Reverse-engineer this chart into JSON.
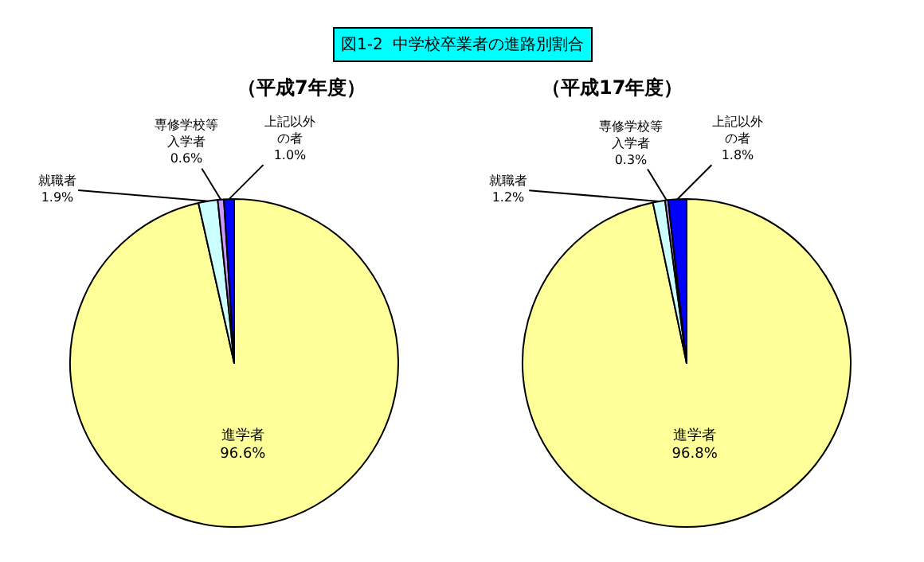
{
  "chart_data": [
    {
      "type": "pie",
      "title": "（平成7年度）",
      "annotations": [
        "図1-2  中学校卒業者の進路別割合"
      ],
      "categories": [
        "進学者",
        "就職者",
        "専修学校等入学者",
        "上記以外の者"
      ],
      "values": [
        96.6,
        1.9,
        0.6,
        1.0
      ],
      "value_labels": [
        "96.6%",
        "1.9%",
        "0.6%",
        "1.0%"
      ],
      "colors": [
        "#ffff99",
        "#ccffff",
        "#cc99ff",
        "#0000ff"
      ],
      "legend": false
    },
    {
      "type": "pie",
      "title": "（平成17年度）",
      "categories": [
        "進学者",
        "就職者",
        "専修学校等入学者",
        "上記以外の者"
      ],
      "values": [
        96.8,
        1.2,
        0.3,
        1.8
      ],
      "value_labels": [
        "96.8%",
        "1.2%",
        "0.3%",
        "1.8%"
      ],
      "colors": [
        "#ffff99",
        "#ccffff",
        "#cc99ff",
        "#0000ff"
      ],
      "legend": false
    }
  ]
}
